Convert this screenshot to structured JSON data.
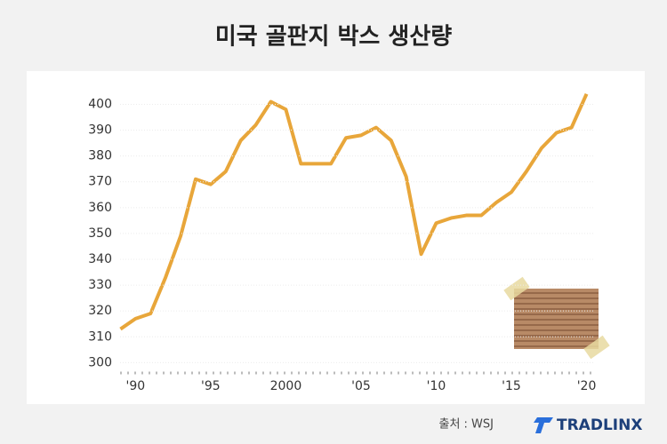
{
  "chart_data": {
    "type": "line",
    "title": "미국 골판지 박스 생산량",
    "source": "출처 : WSJ",
    "brand": "TRADLINX",
    "x": [
      1989,
      1990,
      1991,
      1992,
      1993,
      1994,
      1995,
      1996,
      1997,
      1998,
      1999,
      2000,
      2001,
      2002,
      2003,
      2004,
      2005,
      2006,
      2007,
      2008,
      2009,
      2010,
      2011,
      2012,
      2013,
      2014,
      2015,
      2016,
      2017,
      2018,
      2019,
      2020
    ],
    "series": [
      {
        "name": "생산량",
        "color": "#e8a63a",
        "values": [
          313,
          317,
          319,
          333,
          349,
          371,
          369,
          374,
          386,
          392,
          401,
          398,
          377,
          377,
          377,
          387,
          388,
          391,
          386,
          372,
          342,
          354,
          356,
          357,
          357,
          362,
          366,
          374,
          383,
          389,
          391,
          404
        ]
      }
    ],
    "xlim": [
      1988.5,
      2020.5
    ],
    "xticks": [
      {
        "value": 1990,
        "label": "'90"
      },
      {
        "value": 1995,
        "label": "'95"
      },
      2000,
      {
        "value": 2005,
        "label": "'05"
      },
      {
        "value": 2010,
        "label": "'10"
      },
      {
        "value": 2015,
        "label": "'15"
      },
      {
        "value": 2020,
        "label": "'20"
      }
    ],
    "ylim": [
      296,
      406
    ],
    "yticks": [
      300,
      310,
      320,
      330,
      340,
      350,
      360,
      370,
      380,
      390,
      400
    ],
    "grid": true
  }
}
